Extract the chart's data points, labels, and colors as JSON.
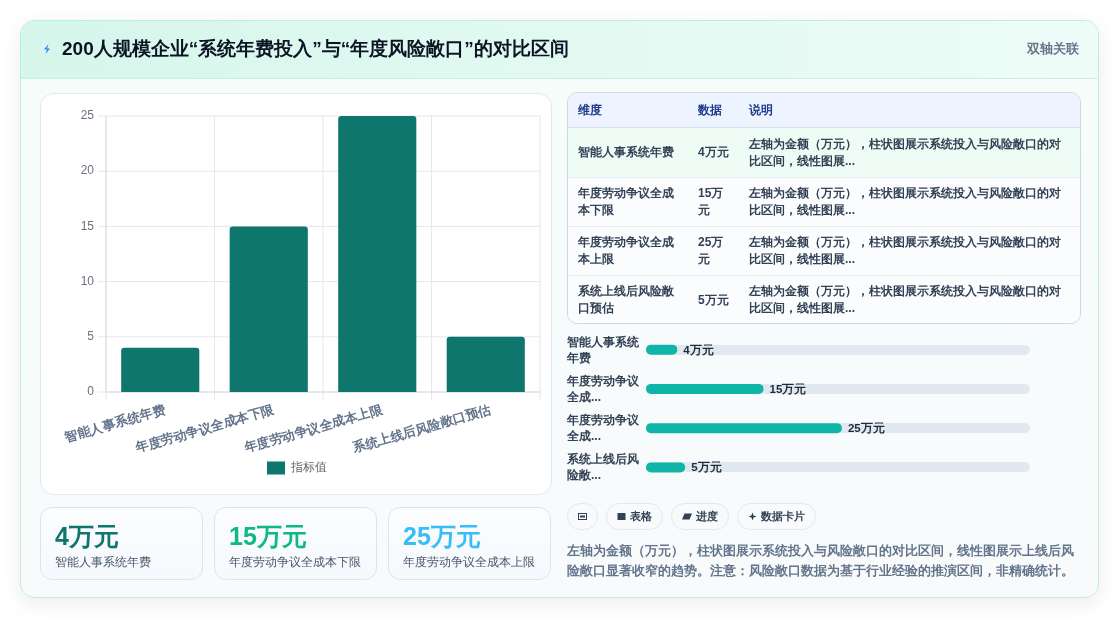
{
  "chart_data": [
    {
      "type": "bar",
      "title": "200人规模企业“系统年费投入”与“年度风险敞口”的对比区间",
      "categories": [
        "智能人事系统年费",
        "年度劳动争议全成本下限",
        "年度劳动争议全成本上限",
        "系统上线后风险敞口预估"
      ],
      "series": [
        {
          "name": "指标值",
          "color": "#0f766e",
          "values": [
            4,
            15,
            25,
            5
          ]
        }
      ],
      "ylim": [
        0,
        25
      ],
      "yticks": [
        0,
        5,
        10,
        15,
        20,
        25
      ],
      "grid": true,
      "legend": "bottom"
    },
    {
      "type": "other",
      "annotations": [
        "双轴关联"
      ],
      "categories": [
        "维度",
        "数据",
        "说明"
      ],
      "cell_labels": [
        [
          "智能人事系统年费",
          "4万元",
          "左轴为金额（万元），柱状图展示系统投入与风险敞口的对比区间，线性图展..."
        ],
        [
          "年度劳动争议全成本下限",
          "15万元",
          "左轴为金额（万元），柱状图展示系统投入与风险敞口的对比区间，线性图展..."
        ],
        [
          "年度劳动争议全成本上限",
          "25万元",
          "左轴为金额（万元），柱状图展示系统投入与风险敞口的对比区间，线性图展..."
        ],
        [
          "系统上线后风险敞口预估",
          "5万元",
          "左轴为金额（万元），柱状图展示系统投入与风险敞口的对比区间，线性图展..."
        ]
      ]
    },
    {
      "type": "bar",
      "orientation": "horizontal",
      "categories": [
        "智能人事系统年费",
        "年度劳动争议全成...",
        "年度劳动争议全成...",
        "系统上线后风险敞..."
      ],
      "values": [
        4,
        15,
        25,
        5
      ],
      "value_labels": [
        "4万元",
        "15万元",
        "25万元",
        "5万元"
      ],
      "color": "#0fb5a6"
    },
    {
      "type": "other",
      "categories": [
        "智能人事系统年费",
        "年度劳动争议全成本下限",
        "年度劳动争议全成本上限"
      ],
      "value_labels": [
        "4万元",
        "15万元",
        "25万元"
      ]
    },
    {
      "type": "other",
      "categories": [
        null,
        "表格",
        "进度",
        "数据卡片"
      ],
      "annotations": [
        "左轴为金额（万元），柱状图展示系统投入与风险敞口的对比区间，线性图展示上线后风险敞口显著收窄的趋势。注意：风险敞口数据为基于行业经验的推演区间，非精确统计。"
      ]
    }
  ]
}
